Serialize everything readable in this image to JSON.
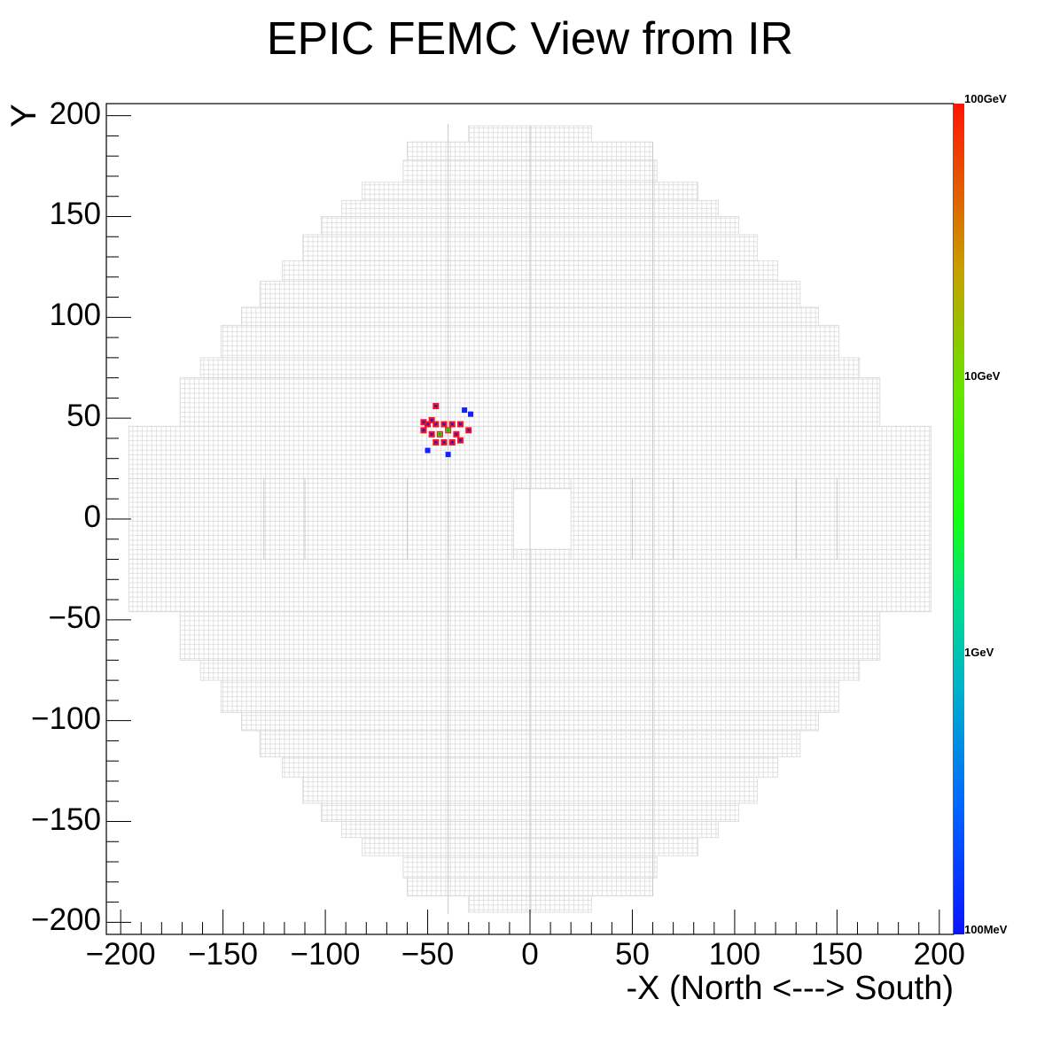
{
  "chart_data": {
    "type": "heatmap",
    "title": "EPIC FEMC View from IR",
    "xlabel": "-X (North <---> South)",
    "ylabel": "Y",
    "xlim": [
      -207,
      207
    ],
    "ylim": [
      -206,
      206
    ],
    "xticks": [
      -200,
      -150,
      -100,
      -50,
      0,
      50,
      100,
      150,
      200
    ],
    "yticks": [
      -200,
      -150,
      -100,
      -50,
      0,
      50,
      100,
      150,
      200
    ],
    "grid": false,
    "colorbar": {
      "scale": "log",
      "labels": [
        "100GeV",
        "10GeV",
        "1GeV",
        "100MeV"
      ],
      "colors": [
        "#ff2200",
        "#ff5a00",
        "#ff8000",
        "#c8a000",
        "#a0c800",
        "#60e000",
        "#30ff00",
        "#00ff40",
        "#00e080",
        "#00c8a0",
        "#0096d0",
        "#0060ff",
        "#0020ff"
      ]
    },
    "detector_color": "#d8d8d8",
    "hits": [
      {
        "x": -46,
        "y": 56,
        "energy": "high"
      },
      {
        "x": -48,
        "y": 49,
        "energy": "high"
      },
      {
        "x": -50,
        "y": 47,
        "energy": "high"
      },
      {
        "x": -46,
        "y": 47,
        "energy": "high"
      },
      {
        "x": -42,
        "y": 47,
        "energy": "high"
      },
      {
        "x": -38,
        "y": 47,
        "energy": "high"
      },
      {
        "x": -34,
        "y": 47,
        "energy": "high"
      },
      {
        "x": -30,
        "y": 44,
        "energy": "high"
      },
      {
        "x": -52,
        "y": 44,
        "energy": "high"
      },
      {
        "x": -48,
        "y": 42,
        "energy": "high"
      },
      {
        "x": -44,
        "y": 42,
        "energy": "mid"
      },
      {
        "x": -40,
        "y": 44,
        "energy": "mid"
      },
      {
        "x": -36,
        "y": 42,
        "energy": "high"
      },
      {
        "x": -46,
        "y": 38,
        "energy": "high"
      },
      {
        "x": -42,
        "y": 38,
        "energy": "high"
      },
      {
        "x": -38,
        "y": 38,
        "energy": "high"
      },
      {
        "x": -34,
        "y": 39,
        "energy": "high"
      },
      {
        "x": -52,
        "y": 48,
        "energy": "high"
      },
      {
        "x": -32,
        "y": 54,
        "energy": "low"
      },
      {
        "x": -29,
        "y": 52,
        "energy": "low"
      },
      {
        "x": -50,
        "y": 34,
        "energy": "low"
      },
      {
        "x": -40,
        "y": 32,
        "energy": "low"
      }
    ]
  }
}
